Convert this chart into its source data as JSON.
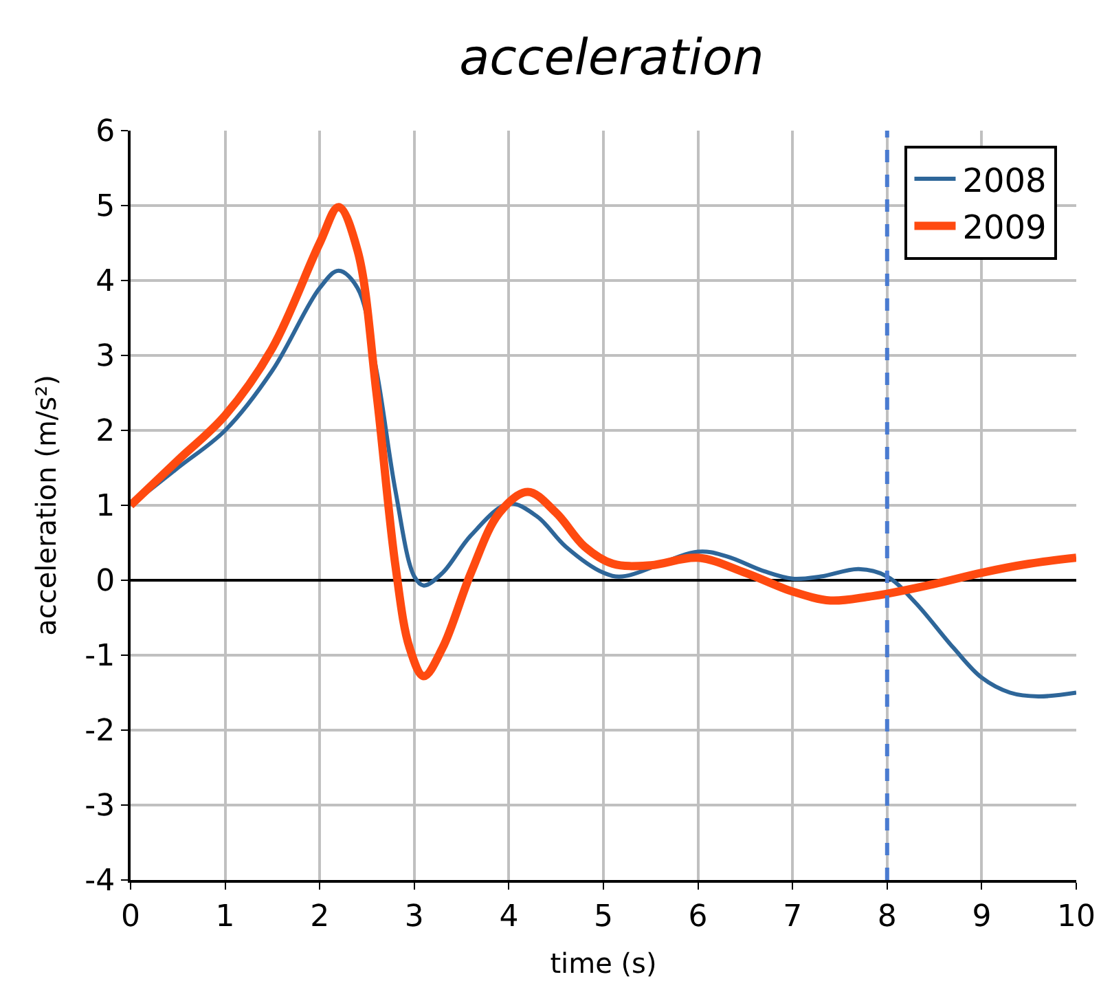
{
  "chart_data": {
    "type": "line",
    "title": "acceleration",
    "xlabel": "time (s)",
    "ylabel": "acceleration (m/s²)",
    "xlim": [
      0,
      10
    ],
    "xticks": [
      0,
      1,
      2,
      3,
      4,
      5,
      6,
      7,
      8,
      9,
      10
    ],
    "ylim": [
      -4,
      6
    ],
    "yticks": [
      -4,
      -3,
      -2,
      -1,
      0,
      1,
      2,
      3,
      4,
      5,
      6
    ],
    "grid": true,
    "legend": "top right",
    "line_style": "solid",
    "marker": "none",
    "ref_lines": [
      {
        "axis": "x",
        "value": 8,
        "color": "#4a7bd0",
        "line_style": "dashed"
      }
    ],
    "series": [
      {
        "name": "2008",
        "color": "#2e6699",
        "x": [
          0,
          0.5,
          1,
          1.5,
          2,
          2.2,
          2.4,
          2.6,
          2.8,
          3,
          3.1,
          3.3,
          3.6,
          4,
          4.3,
          4.6,
          5,
          5.2,
          6,
          6.3,
          6.7,
          7,
          7.3,
          7.7,
          8,
          8.3,
          8.7,
          9,
          9.3,
          9.6,
          10
        ],
        "values": [
          1,
          1.5,
          2.0,
          2.8,
          3.9,
          4.13,
          3.9,
          2.8,
          1.2,
          0.05,
          -0.07,
          0.1,
          0.6,
          1.02,
          0.85,
          0.45,
          0.1,
          0.05,
          0.38,
          0.32,
          0.12,
          0.02,
          0.05,
          0.15,
          0.05,
          -0.3,
          -0.9,
          -1.3,
          -1.5,
          -1.55,
          -1.5
        ]
      },
      {
        "name": "2009",
        "color": "#ff4a10",
        "x": [
          0,
          0.5,
          1,
          1.5,
          2,
          2.2,
          2.4,
          2.6,
          2.8,
          2.95,
          3.1,
          3.3,
          3.6,
          3.9,
          4.2,
          4.5,
          4.8,
          5.1,
          5.5,
          6,
          6.5,
          7,
          7.4,
          7.8,
          8,
          8.5,
          9,
          9.5,
          10
        ],
        "values": [
          1,
          1.6,
          2.2,
          3.1,
          4.5,
          4.98,
          4.4,
          2.5,
          0.2,
          -0.9,
          -1.28,
          -0.9,
          0.1,
          0.9,
          1.18,
          0.9,
          0.45,
          0.22,
          0.2,
          0.3,
          0.1,
          -0.15,
          -0.27,
          -0.22,
          -0.18,
          -0.05,
          0.1,
          0.22,
          0.3
        ]
      }
    ]
  }
}
